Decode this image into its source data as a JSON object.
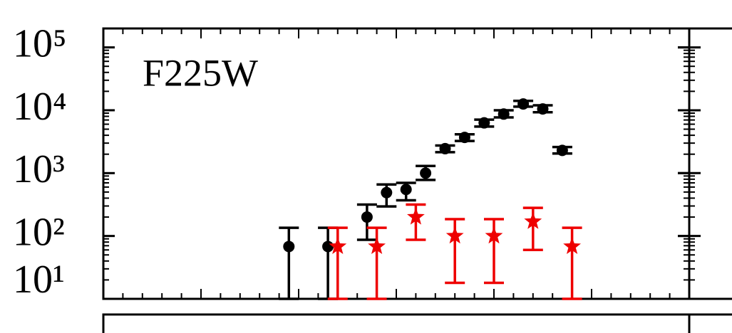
{
  "chart_data": {
    "type": "scatter",
    "title": "F225W",
    "ylog": true,
    "ylim": [
      10,
      200000
    ],
    "yticks": [
      {
        "value": 100000,
        "label": "10⁵"
      },
      {
        "value": 10000,
        "label": "10⁴"
      },
      {
        "value": 1000,
        "label": "10³"
      },
      {
        "value": 100,
        "label": "10²"
      },
      {
        "value": 10,
        "label": "10¹"
      }
    ],
    "xlim": [
      0,
      30
    ],
    "series": [
      {
        "color": "#000000",
        "marker": "circle",
        "x": [
          9.5,
          11.5,
          13.5,
          14.5,
          15.5,
          16.5,
          17.5,
          18.5,
          19.5,
          20.5,
          21.5,
          22.5,
          23.5
        ],
        "values": [
          68,
          68,
          200,
          490,
          550,
          1000,
          2450,
          3700,
          6300,
          8700,
          12600,
          10500,
          2300
        ],
        "low": [
          10,
          10,
          87,
          295,
          370,
          780,
          2150,
          3250,
          5500,
          7700,
          11400,
          9300,
          2050
        ],
        "high": [
          135,
          135,
          316,
          660,
          700,
          1300,
          2750,
          4150,
          7100,
          10000,
          14100,
          12000,
          2600
        ]
      },
      {
        "color": "#ee0000",
        "marker": "star",
        "x": [
          12,
          14,
          16,
          18,
          20,
          22,
          24
        ],
        "values": [
          68,
          68,
          200,
          100,
          100,
          170,
          68
        ],
        "low": [
          10,
          10,
          87,
          18,
          18,
          60,
          10
        ],
        "high": [
          135,
          135,
          316,
          185,
          185,
          280,
          135
        ]
      }
    ]
  }
}
